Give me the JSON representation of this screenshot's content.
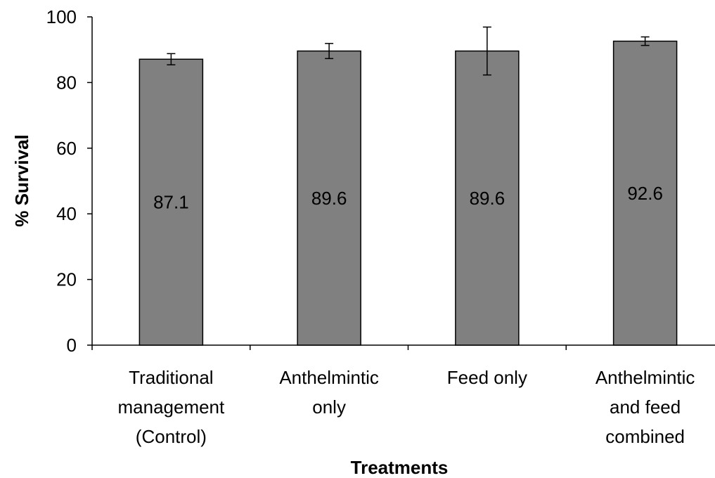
{
  "chart_data": {
    "type": "bar",
    "title": "",
    "xlabel": "Treatments",
    "ylabel": "% Survival",
    "ylim": [
      0,
      100
    ],
    "yticks": [
      0,
      20,
      40,
      60,
      80,
      100
    ],
    "grid": false,
    "legend": "none",
    "bar_color": "#808080",
    "categories": [
      [
        "Traditional",
        "management",
        "(Control)"
      ],
      [
        "Anthelmintic",
        "only"
      ],
      [
        "Feed only"
      ],
      [
        "Anthelmintic",
        "and feed",
        "combined"
      ]
    ],
    "values": [
      87.1,
      89.6,
      89.6,
      92.6
    ],
    "data_labels": [
      "87.1",
      "89.6",
      "89.6",
      "92.6"
    ],
    "error": [
      1.7,
      2.3,
      7.3,
      1.3
    ]
  }
}
